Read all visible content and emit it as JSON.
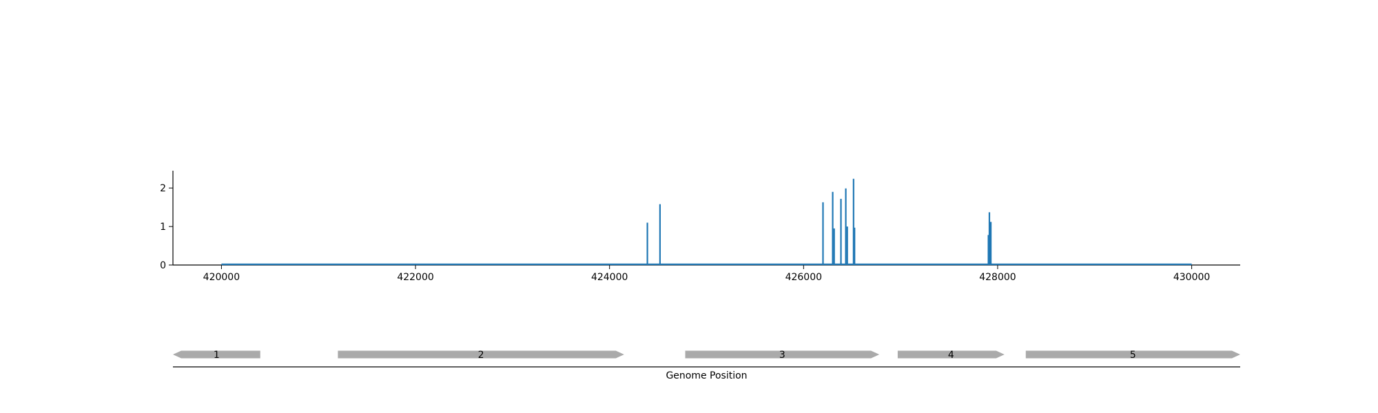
{
  "chart_data": [
    {
      "type": "line",
      "title": "",
      "xlabel": "",
      "ylabel": "",
      "xlim": [
        419500,
        430500
      ],
      "ylim": [
        0,
        2.45
      ],
      "xticks": [
        420000,
        422000,
        424000,
        426000,
        428000,
        430000
      ],
      "yticks": [
        0,
        1,
        2
      ],
      "grid": false,
      "color": "#1f77b4",
      "baseline": {
        "start": 420000,
        "end": 430000,
        "value": 0
      },
      "spikes": [
        {
          "x": 424390,
          "y": 1.1
        },
        {
          "x": 424520,
          "y": 1.58
        },
        {
          "x": 426200,
          "y": 1.63
        },
        {
          "x": 426300,
          "y": 1.9
        },
        {
          "x": 426315,
          "y": 0.95
        },
        {
          "x": 426385,
          "y": 1.72
        },
        {
          "x": 426435,
          "y": 1.99
        },
        {
          "x": 426450,
          "y": 1.0
        },
        {
          "x": 426515,
          "y": 2.24
        },
        {
          "x": 426525,
          "y": 0.97
        },
        {
          "x": 427905,
          "y": 0.78
        },
        {
          "x": 427915,
          "y": 1.37
        },
        {
          "x": 427930,
          "y": 1.12
        }
      ]
    },
    {
      "type": "gene-track",
      "xlabel": "Genome Position",
      "xlim": [
        419500,
        430500
      ],
      "feature_color": "#aaaaaa",
      "genes": [
        {
          "label": "1",
          "start": 419500,
          "end": 420400,
          "strand": "-"
        },
        {
          "label": "2",
          "start": 421200,
          "end": 424150,
          "strand": "+"
        },
        {
          "label": "3",
          "start": 424780,
          "end": 426780,
          "strand": "+"
        },
        {
          "label": "4",
          "start": 426970,
          "end": 428070,
          "strand": "+"
        },
        {
          "label": "5",
          "start": 428290,
          "end": 430500,
          "strand": "+"
        }
      ]
    }
  ]
}
